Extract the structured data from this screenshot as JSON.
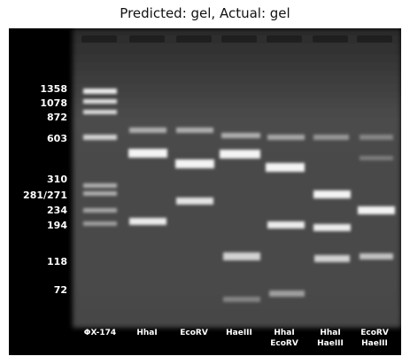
{
  "title": "Predicted: gel, Actual: gel",
  "gel": {
    "size_markers": [
      "1358",
      "1078",
      "872",
      "603",
      "310",
      "281/271",
      "234",
      "194",
      "118",
      "72"
    ],
    "lanes": [
      "ΦX-174",
      "HhaI",
      "EcoRV",
      "HaeIII",
      "HhaI\nEcoRV",
      "HhaI\nHaeIII",
      "EcoRV\nHaeIII"
    ]
  },
  "colors": {
    "background": "#000000",
    "gel": "#4a4a4a",
    "band": "#ffffff",
    "label": "#ffffff"
  }
}
